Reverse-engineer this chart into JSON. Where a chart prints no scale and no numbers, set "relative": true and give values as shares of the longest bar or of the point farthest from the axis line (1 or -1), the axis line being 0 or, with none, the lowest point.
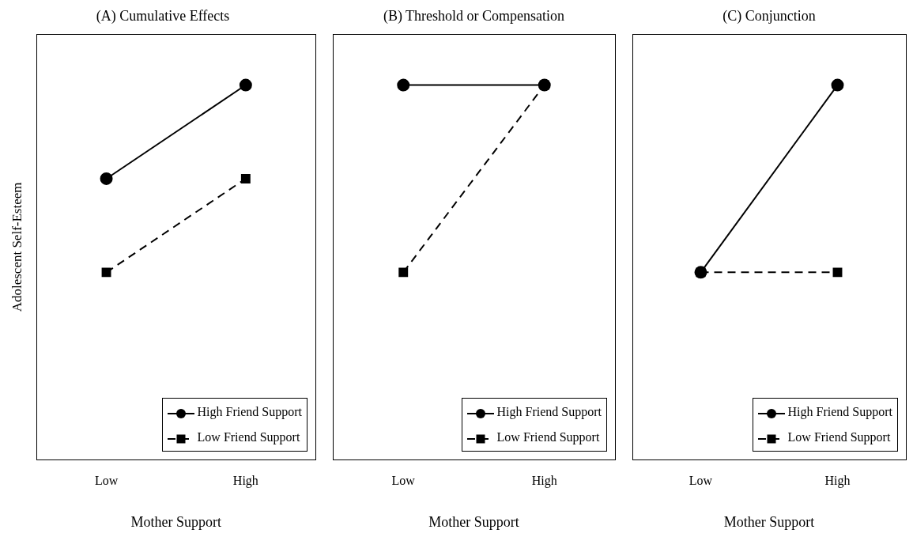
{
  "chart_data": [
    {
      "type": "line",
      "title": "(A) Cumulative Effects",
      "xlabel": "Mother Support",
      "ylabel": "Adolescent Self-Esteem",
      "categories": [
        "Low",
        "High"
      ],
      "relative": true,
      "legend": "bottom right",
      "series": [
        {
          "name": "High Friend Support",
          "color": "#000000",
          "values": [
            0.75,
            1
          ],
          "marker": "circle",
          "line_style": "solid"
        },
        {
          "name": "Low Friend Support",
          "color": "#000000",
          "values": [
            0.5,
            0.75
          ],
          "marker": "square",
          "line_style": "dashed"
        }
      ]
    },
    {
      "type": "line",
      "title": "(B) Threshold or Compensation",
      "xlabel": "Mother Support",
      "categories": [
        "Low",
        "High"
      ],
      "relative": true,
      "legend": "bottom right",
      "series": [
        {
          "name": "High Friend Support",
          "color": "#000000",
          "values": [
            1,
            1
          ],
          "marker": "circle",
          "line_style": "solid"
        },
        {
          "name": "Low Friend Support",
          "color": "#000000",
          "values": [
            0.5,
            1
          ],
          "marker": "square",
          "line_style": "dashed"
        }
      ]
    },
    {
      "type": "line",
      "title": "(C) Conjunction",
      "xlabel": "Mother Support",
      "categories": [
        "Low",
        "High"
      ],
      "relative": true,
      "legend": "bottom right",
      "series": [
        {
          "name": "High Friend Support",
          "color": "#000000",
          "values": [
            0.5,
            1
          ],
          "marker": "circle",
          "line_style": "solid"
        },
        {
          "name": "Low Friend Support",
          "color": "#000000",
          "values": [
            0.5,
            0.5
          ],
          "marker": "square",
          "line_style": "dashed"
        }
      ]
    }
  ]
}
